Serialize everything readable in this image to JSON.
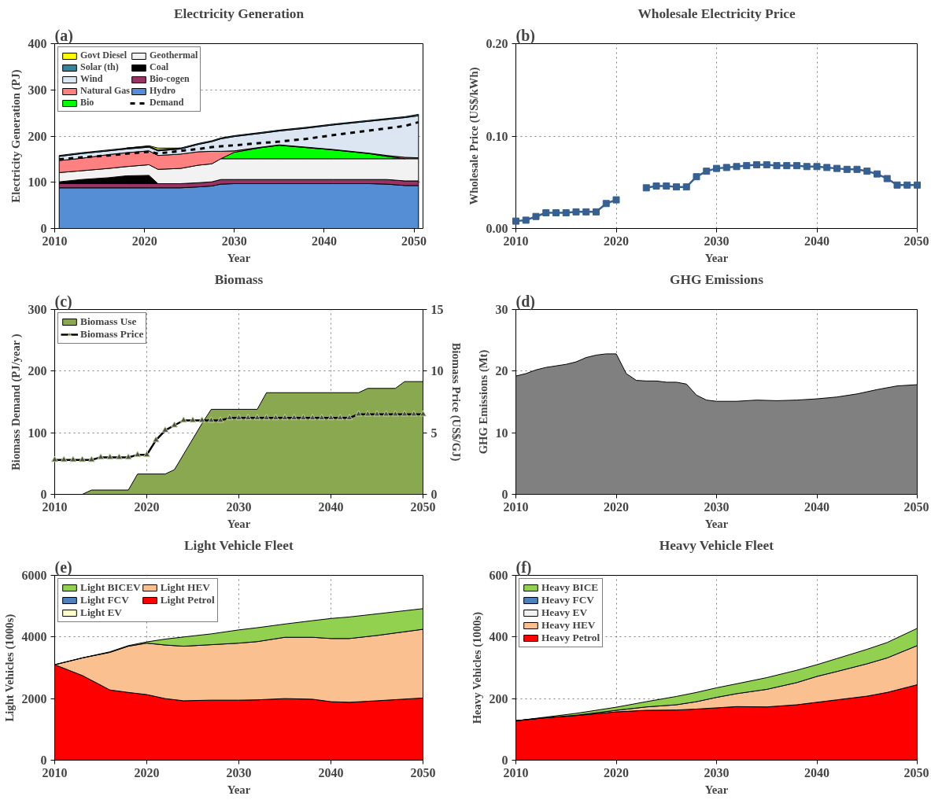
{
  "chart_data": [
    {
      "type": "area",
      "title": "Electricity Generation",
      "xlabel": "Year",
      "ylabel": "Electricity Generation (PJ)",
      "annotations": [
        "(a)"
      ],
      "stacked": true,
      "legend": "top left",
      "grid": "y",
      "xlim": [
        2010,
        2051
      ],
      "xticks": [
        2010,
        2020,
        2030,
        2040,
        2050
      ],
      "ylim": [
        0,
        400
      ],
      "yticks": [
        0,
        100,
        200,
        300,
        400
      ],
      "x": [
        2010.5,
        2013,
        2016,
        2018,
        2020.5,
        2021.5,
        2024,
        2026,
        2027.5,
        2028.5,
        2030,
        2033,
        2035,
        2038,
        2041,
        2045,
        2047,
        2049,
        2050.5
      ],
      "series": [
        {
          "name": "Hydro",
          "color": "#558ed5",
          "values": [
            88,
            88,
            88,
            88,
            88,
            88,
            88,
            90,
            92,
            96,
            97,
            97,
            97,
            97,
            97,
            97,
            96,
            93,
            93
          ]
        },
        {
          "name": "Bio-cogen",
          "color": "#993366",
          "values": [
            9,
            9,
            9,
            9,
            9,
            9,
            9,
            9,
            9,
            10,
            9,
            9,
            9,
            9,
            9,
            9,
            10,
            10,
            10
          ]
        },
        {
          "name": "Coal",
          "color": "#000000",
          "values": [
            4,
            9,
            13,
            17,
            18,
            0,
            null,
            null,
            null,
            null,
            null,
            null,
            null,
            null,
            null,
            null,
            null,
            null,
            null
          ]
        },
        {
          "name": "Geothermal",
          "color": "#f2f2f2",
          "values": [
            20,
            19,
            20,
            20,
            23,
            31,
            33,
            38,
            39,
            45,
            45,
            45,
            45,
            45,
            45,
            45,
            45,
            48,
            48
          ]
        },
        {
          "name": "Bio",
          "color": "#00ff00",
          "values": [
            null,
            null,
            null,
            null,
            null,
            null,
            null,
            null,
            null,
            0,
            14,
            24,
            29,
            24,
            19,
            11,
            5,
            0,
            null
          ]
        },
        {
          "name": "Natural Gas",
          "color": "#ff8080",
          "values": [
            26,
            27,
            30,
            30,
            30,
            30,
            31,
            29,
            27,
            16,
            3,
            1,
            1,
            1,
            1,
            1,
            2,
            3,
            2
          ]
        },
        {
          "name": "Wind",
          "color": "#dce6f2",
          "values": [
            9,
            10,
            8,
            8,
            8,
            10,
            11,
            16,
            21,
            27,
            31,
            30,
            30,
            41,
            53,
            69,
            78,
            86,
            91
          ]
        },
        {
          "name": "Solar (th)",
          "color": "#31859c",
          "values": [
            2,
            2,
            2,
            2,
            2,
            2,
            2,
            2,
            2,
            2,
            2,
            2,
            2,
            2,
            2,
            2,
            2,
            2,
            3
          ]
        },
        {
          "name": "Govt Diesel",
          "color": "#ffff00",
          "values": [
            null,
            null,
            null,
            0,
            1,
            4,
            0,
            null,
            null,
            null,
            null,
            null,
            null,
            null,
            null,
            null,
            null,
            null,
            null
          ]
        },
        {
          "name": "Demand",
          "type": "line",
          "line_style": "dashed",
          "color": "#000000",
          "values": [
            150,
            154,
            158,
            162,
            166,
            162,
            168,
            172,
            176,
            178,
            180,
            185,
            188,
            194,
            202,
            212,
            217,
            222,
            230
          ]
        }
      ]
    },
    {
      "type": "line",
      "title": "Wholesale Electricity Price",
      "xlabel": "Year",
      "ylabel": "Wholesale Price (US$/kWh)",
      "annotations": [
        "(b)"
      ],
      "marker": "square",
      "grid": true,
      "xlim": [
        2010,
        2050
      ],
      "xticks": [
        2010,
        2020,
        2030,
        2040,
        2050
      ],
      "ylim": [
        0,
        0.2
      ],
      "yticks": [
        {
          "value": 0,
          "label": "0.00"
        },
        {
          "value": 0.1,
          "label": "0.10"
        },
        {
          "value": 0.2,
          "label": "0.20"
        }
      ],
      "x": [
        2010,
        2011,
        2012,
        2013,
        2014,
        2015,
        2016,
        2017,
        2018,
        2019,
        2020,
        2021,
        2022,
        2023,
        2024,
        2025,
        2026,
        2027,
        2028,
        2029,
        2030,
        2031,
        2032,
        2033,
        2034,
        2035,
        2036,
        2037,
        2038,
        2039,
        2040,
        2041,
        2042,
        2043,
        2044,
        2045,
        2046,
        2047,
        2048,
        2049,
        2050
      ],
      "series": [
        {
          "color": "#376092",
          "values": [
            0.008,
            0.009,
            0.013,
            0.017,
            0.017,
            0.017,
            0.018,
            0.018,
            0.018,
            0.027,
            0.031,
            null,
            null,
            0.044,
            0.046,
            0.046,
            0.045,
            0.045,
            0.056,
            0.062,
            0.065,
            0.066,
            0.067,
            0.068,
            0.069,
            0.069,
            0.068,
            0.068,
            0.068,
            0.067,
            0.067,
            0.066,
            0.065,
            0.064,
            0.064,
            0.062,
            0.059,
            0.054,
            0.047,
            0.047,
            0.047
          ]
        }
      ]
    },
    {
      "type": "area",
      "title": "Biomass",
      "xlabel": "Year",
      "ylabel": "Biomass Demand (PJ/year )",
      "y2label": "Biomass Price (US$/GJ)",
      "annotations": [
        "(c)"
      ],
      "legend": "top left",
      "grid": true,
      "xlim": [
        2010,
        2050
      ],
      "xticks": [
        2010,
        2020,
        2030,
        2040,
        2050
      ],
      "ylim": [
        0,
        300
      ],
      "yticks": [
        0,
        100,
        200,
        300
      ],
      "y2lim": [
        0,
        15
      ],
      "y2ticks": [
        0,
        5,
        10,
        15
      ],
      "series": [
        {
          "name": "Biomass Use",
          "color": "#8aa84f",
          "x": [
            2010,
            2013,
            2014,
            2018,
            2019,
            2022,
            2023,
            2026,
            2027,
            2032,
            2033,
            2043,
            2044,
            2047,
            2048,
            2050
          ],
          "values": [
            0,
            0,
            7,
            7,
            33,
            33,
            40,
            115,
            138,
            138,
            165,
            165,
            172,
            172,
            183,
            183
          ]
        },
        {
          "name": "Biomass Price",
          "type": "line",
          "axis": "y2",
          "marker": "triangle",
          "color": "#000000",
          "x": [
            2010,
            2011,
            2012,
            2013,
            2014,
            2015,
            2016,
            2017,
            2018,
            2019,
            2020,
            2021,
            2022,
            2023,
            2024,
            2025,
            2026,
            2027,
            2028,
            2029,
            2030,
            2031,
            2032,
            2033,
            2034,
            2035,
            2036,
            2037,
            2038,
            2039,
            2040,
            2041,
            2042,
            2043,
            2044,
            2045,
            2046,
            2047,
            2048,
            2049,
            2050
          ],
          "values": [
            2.8,
            2.8,
            2.8,
            2.8,
            2.8,
            3.0,
            3.0,
            3.0,
            3.0,
            3.2,
            3.2,
            4.4,
            5.2,
            5.6,
            6.0,
            6.0,
            6.0,
            6.0,
            6.0,
            6.2,
            6.2,
            6.2,
            6.2,
            6.2,
            6.2,
            6.2,
            6.2,
            6.2,
            6.2,
            6.2,
            6.2,
            6.2,
            6.2,
            6.5,
            6.5,
            6.5,
            6.5,
            6.5,
            6.5,
            6.5,
            6.5
          ]
        }
      ]
    },
    {
      "type": "area",
      "title": "GHG Emissions",
      "xlabel": "Year",
      "ylabel": "GHG Emissions (Mt)",
      "annotations": [
        "(d)"
      ],
      "grid": true,
      "xlim": [
        2010,
        2050
      ],
      "xticks": [
        2010,
        2020,
        2030,
        2040,
        2050
      ],
      "ylim": [
        0,
        30
      ],
      "yticks": [
        0,
        10,
        20,
        30
      ],
      "x": [
        2010,
        2011,
        2012,
        2013,
        2015,
        2016,
        2017,
        2018,
        2019,
        2020,
        2021,
        2022,
        2023,
        2024,
        2025,
        2026,
        2027,
        2028,
        2029,
        2030,
        2032,
        2034,
        2036,
        2038,
        2040,
        2042,
        2044,
        2046,
        2048,
        2050
      ],
      "series": [
        {
          "color": "#808080",
          "values": [
            19.2,
            19.6,
            20.2,
            20.6,
            21.1,
            21.5,
            22.2,
            22.6,
            22.8,
            22.8,
            19.6,
            18.5,
            18.4,
            18.4,
            18.2,
            18.2,
            17.9,
            16.1,
            15.3,
            15.1,
            15.1,
            15.3,
            15.2,
            15.3,
            15.5,
            15.8,
            16.3,
            17.0,
            17.6,
            17.8
          ]
        }
      ]
    },
    {
      "type": "area",
      "title": "Light Vehicle Fleet",
      "xlabel": "Year",
      "ylabel": "Light Vehicles (1000s)",
      "annotations": [
        "(e)"
      ],
      "stacked": true,
      "legend": "top left",
      "grid": true,
      "xlim": [
        2010,
        2050
      ],
      "xticks": [
        2010,
        2020,
        2030,
        2040,
        2050
      ],
      "ylim": [
        0,
        6000
      ],
      "yticks": [
        0,
        2000,
        4000,
        6000
      ],
      "x": [
        2010,
        2013,
        2016,
        2018,
        2020,
        2022,
        2024,
        2027,
        2030,
        2032,
        2035,
        2038,
        2040,
        2042,
        2045,
        2050
      ],
      "series": [
        {
          "name": "Light Petrol",
          "color": "#ff0000",
          "values": [
            3100,
            2750,
            2280,
            2200,
            2130,
            2000,
            1930,
            1950,
            1950,
            1960,
            2000,
            1980,
            1900,
            1880,
            1930,
            2020
          ]
        },
        {
          "name": "Light HEV",
          "color": "#fac090",
          "values": [
            0,
            570,
            1220,
            1500,
            1670,
            1740,
            1770,
            1800,
            1850,
            1890,
            1990,
            2010,
            2050,
            2070,
            2120,
            2230
          ]
        },
        {
          "name": "Light EV",
          "color": "#ffffcc",
          "values": [
            null,
            null,
            null,
            null,
            null,
            null,
            null,
            null,
            null,
            null,
            null,
            null,
            null,
            null,
            null,
            null
          ]
        },
        {
          "name": "Light FCV",
          "color": "#4f81bd",
          "values": [
            null,
            null,
            null,
            null,
            null,
            null,
            null,
            null,
            null,
            null,
            null,
            null,
            null,
            null,
            null,
            null
          ]
        },
        {
          "name": "Light BICEV",
          "color": "#92d050",
          "values": [
            0,
            0,
            20,
            20,
            40,
            190,
            300,
            350,
            430,
            450,
            430,
            540,
            650,
            700,
            700,
            670
          ]
        }
      ]
    },
    {
      "type": "area",
      "title": "Heavy Vehicle Fleet",
      "xlabel": "Year",
      "ylabel": "Heavy Vehicles (1000s)",
      "annotations": [
        "(f)"
      ],
      "stacked": true,
      "legend": "top left",
      "grid": true,
      "xlim": [
        2010,
        2050
      ],
      "xticks": [
        2010,
        2020,
        2030,
        2040,
        2050
      ],
      "ylim": [
        0,
        600
      ],
      "yticks": [
        0,
        200,
        400,
        600
      ],
      "x": [
        2010,
        2013,
        2016,
        2020,
        2023,
        2026,
        2028,
        2030,
        2032,
        2035,
        2038,
        2040,
        2042,
        2045,
        2047,
        2050
      ],
      "series": [
        {
          "name": "Heavy Petrol",
          "color": "#ff0000",
          "values": [
            128,
            138,
            145,
            157,
            162,
            163,
            166,
            170,
            174,
            173,
            180,
            188,
            196,
            208,
            220,
            245
          ]
        },
        {
          "name": "Heavy HEV",
          "color": "#fac090",
          "values": [
            0,
            0,
            1,
            5,
            11,
            17,
            24,
            34,
            42,
            57,
            72,
            84,
            92,
            105,
            112,
            127
          ]
        },
        {
          "name": "Heavy EV",
          "color": "#f2f2f2",
          "values": [
            null,
            null,
            null,
            null,
            null,
            null,
            null,
            null,
            null,
            null,
            null,
            null,
            null,
            null,
            null,
            null
          ]
        },
        {
          "name": "Heavy FCV",
          "color": "#4f81bd",
          "values": [
            null,
            null,
            null,
            null,
            null,
            null,
            null,
            null,
            null,
            null,
            null,
            null,
            null,
            null,
            null,
            null
          ]
        },
        {
          "name": "Heavy BICE",
          "color": "#92d050",
          "values": [
            0,
            2,
            6,
            10,
            17,
            27,
            30,
            31,
            32,
            38,
            40,
            38,
            42,
            47,
            50,
            56
          ]
        }
      ]
    }
  ]
}
